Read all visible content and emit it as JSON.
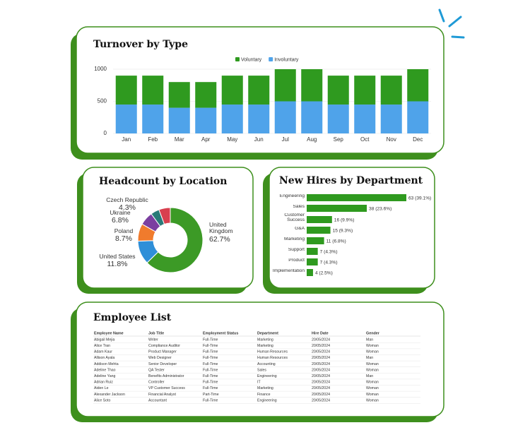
{
  "chart_data": [
    {
      "type": "bar",
      "stacked": true,
      "title": "Turnover by Type",
      "categories": [
        "Jan",
        "Feb",
        "Mar",
        "Apr",
        "May",
        "Jun",
        "Jul",
        "Aug",
        "Sep",
        "Oct",
        "Nov",
        "Dec"
      ],
      "series": [
        {
          "name": "Voluntary",
          "color": "#2f9a1f",
          "values": [
            450,
            450,
            400,
            400,
            450,
            450,
            500,
            500,
            450,
            450,
            450,
            500
          ]
        },
        {
          "name": "Involuntary",
          "color": "#4fa3ea",
          "values": [
            450,
            450,
            400,
            400,
            450,
            450,
            500,
            500,
            450,
            450,
            450,
            500
          ]
        }
      ],
      "ylim": [
        0,
        1000
      ],
      "yticks": [
        0,
        500,
        1000
      ],
      "grid": true,
      "legend": "top"
    },
    {
      "type": "pie",
      "donut": true,
      "title": "Headcount by Location",
      "categories": [
        "United Kingdom",
        "United States",
        "Poland",
        "Ukraine",
        "Czech Republic",
        null
      ],
      "values": [
        62.7,
        11.8,
        8.7,
        6.8,
        4.3,
        5.7
      ],
      "value_labels": [
        "62.7%",
        "11.8%",
        "8.7%",
        "6.8%",
        "4.3%",
        null
      ],
      "colors": [
        "#3c9a26",
        "#2f8fd8",
        "#f07b2d",
        "#7b3fa0",
        "#2a7a78",
        "#d8404f"
      ]
    },
    {
      "type": "bar",
      "orientation": "horizontal",
      "title": "New Hires by Department",
      "categories": [
        "Engineering",
        "Sales",
        "Customer Success",
        "G&A",
        "Marketing",
        "Support",
        "Product",
        "Implementation"
      ],
      "values": [
        63,
        38,
        16,
        15,
        11,
        7,
        7,
        4
      ],
      "value_labels": [
        "63 (39.1%)",
        "38 (23.6%)",
        "16 (9.9%)",
        "15 (9.3%)",
        "11 (6.8%)",
        "7 (4.3%)",
        "7 (4.3%)",
        "4 (2.5%)"
      ],
      "color": "#2f9a1f"
    }
  ],
  "table": {
    "title": "Employee List",
    "columns": [
      "Employee Name",
      "Job Title",
      "Employment Status",
      "Department",
      "Hire Date",
      "Gender"
    ],
    "rows": [
      [
        "Abigail Mejia",
        "Writer",
        "Full-Time",
        "Marketing",
        "20/05/2024",
        "Man"
      ],
      [
        "Alice Tran",
        "Compliance Auditor",
        "Full-Time",
        "Marketing",
        "20/05/2024",
        "Woman"
      ],
      [
        "Adam Kaur",
        "Product Manager",
        "Full-Time",
        "Human Resources",
        "20/05/2024",
        "Woman"
      ],
      [
        "Allison Ayala",
        "Web Designer",
        "Full-Time",
        "Human Resources",
        "20/05/2024",
        "Man"
      ],
      [
        "Addison Mehta",
        "Senior Developer",
        "Full-Time",
        "Accounting",
        "20/05/2024",
        "Woman"
      ],
      [
        "Adeline Thao",
        "QA Tester",
        "Full-Time",
        "Sales",
        "20/05/2024",
        "Woman"
      ],
      [
        "Adeline Yang",
        "Benefits Administrator",
        "Full-Time",
        "Engineering",
        "20/05/2024",
        "Man"
      ],
      [
        "Adrian Ruiz",
        "Controller",
        "Full-Time",
        "IT",
        "20/05/2024",
        "Woman"
      ],
      [
        "Aiden Le",
        "VP Customer Success",
        "Full-Time",
        "Marketing",
        "20/05/2024",
        "Woman"
      ],
      [
        "Alexander Jackson",
        "Financial Analyst",
        "Part-Time",
        "Finance",
        "20/05/2024",
        "Woman"
      ],
      [
        "Alice Soto",
        "Accountant",
        "Full-Time",
        "Engineering",
        "20/05/2024",
        "Woman"
      ]
    ]
  }
}
